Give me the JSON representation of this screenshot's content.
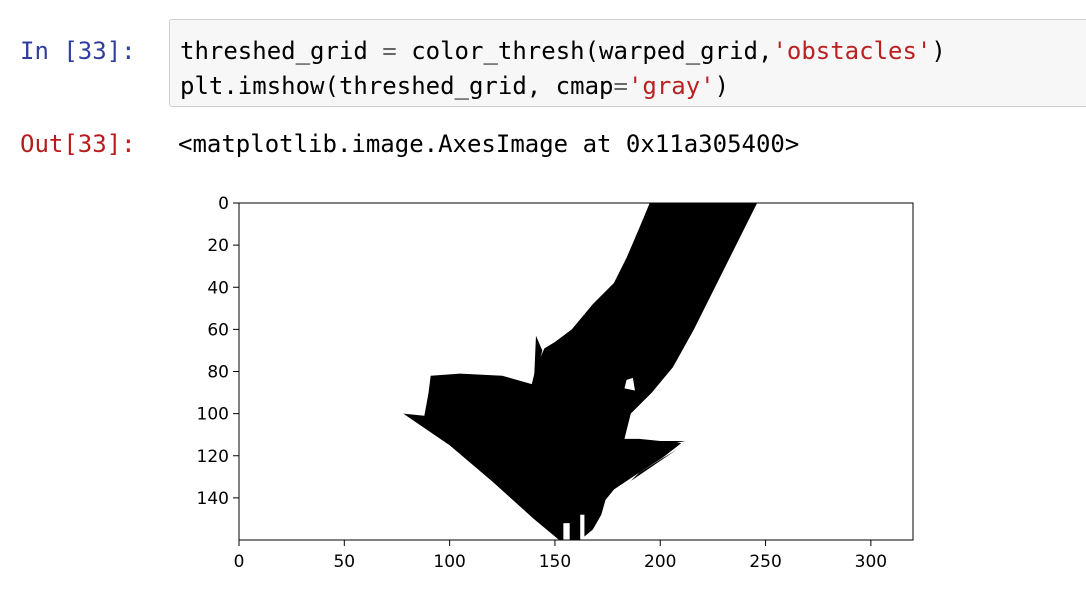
{
  "cell": {
    "in_prompt": "In [33]:",
    "out_prompt": "Out[33]:",
    "code": {
      "line1": {
        "a": "threshed_grid ",
        "op": "=",
        "b": " color_thresh(warped_grid,",
        "str": "'obstacles'",
        "c": ")"
      },
      "line2": {
        "a": "plt.imshow(threshed_grid, cmap",
        "op": "=",
        "str": "'gray'",
        "c": ")"
      }
    },
    "output_text": "<matplotlib.image.AxesImage at 0x11a305400>"
  },
  "chart_data": {
    "type": "image",
    "cmap": "gray",
    "xlim": [
      0,
      320
    ],
    "ylim": [
      160,
      0
    ],
    "x_ticks": [
      0,
      50,
      100,
      150,
      200,
      250,
      300
    ],
    "y_ticks": [
      0,
      20,
      40,
      60,
      80,
      100,
      120,
      140
    ],
    "x_tick_labels": [
      "0",
      "50",
      "100",
      "150",
      "200",
      "250",
      "300"
    ],
    "y_tick_labels": [
      "0",
      "20",
      "40",
      "60",
      "80",
      "100",
      "120",
      "140"
    ],
    "obstacle_shape": [
      [
        195,
        0
      ],
      [
        246,
        0
      ],
      [
        236,
        20
      ],
      [
        226,
        40
      ],
      [
        216,
        60
      ],
      [
        206,
        78
      ],
      [
        196,
        90
      ],
      [
        186,
        100
      ],
      [
        183,
        112
      ],
      [
        190,
        112
      ],
      [
        210,
        114
      ],
      [
        201,
        121
      ],
      [
        190,
        128
      ],
      [
        178,
        136
      ],
      [
        174,
        141
      ],
      [
        172,
        148
      ],
      [
        168,
        155
      ],
      [
        162,
        160
      ],
      [
        152,
        160
      ],
      [
        140,
        150
      ],
      [
        120,
        132
      ],
      [
        100,
        115
      ],
      [
        78,
        100
      ],
      [
        88,
        101
      ],
      [
        90,
        90
      ],
      [
        91,
        82
      ],
      [
        105,
        81
      ],
      [
        125,
        82
      ],
      [
        139,
        86
      ],
      [
        141,
        78
      ],
      [
        145,
        69
      ],
      [
        150,
        66
      ],
      [
        158,
        60
      ],
      [
        168,
        48
      ],
      [
        178,
        38
      ],
      [
        184,
        26
      ],
      [
        190,
        12
      ]
    ],
    "obstacle_spikes": [
      [
        [
          140,
          86
        ],
        [
          141,
          63
        ],
        [
          144,
          70
        ]
      ],
      [
        [
          183,
          113
        ],
        [
          212,
          113
        ],
        [
          186,
          118
        ]
      ],
      [
        [
          190,
          128
        ],
        [
          208,
          117
        ],
        [
          186,
          132
        ]
      ]
    ],
    "free_holes": [
      [
        [
          184,
          84
        ],
        [
          187,
          83
        ],
        [
          188,
          89
        ],
        [
          183,
          88
        ]
      ],
      [
        [
          181,
          134
        ],
        [
          186,
          132
        ],
        [
          186,
          136
        ],
        [
          180,
          138
        ]
      ],
      [
        [
          162,
          148
        ],
        [
          164,
          148
        ],
        [
          164,
          160
        ],
        [
          162,
          160
        ]
      ],
      [
        [
          154,
          152
        ],
        [
          157,
          152
        ],
        [
          157,
          160
        ],
        [
          154,
          160
        ]
      ]
    ]
  }
}
